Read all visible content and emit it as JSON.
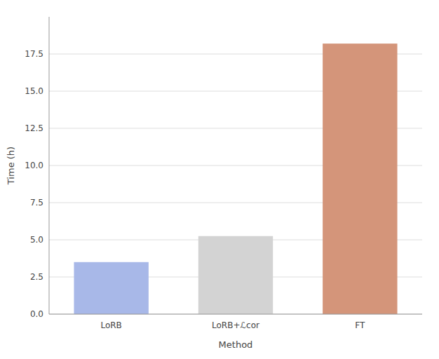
{
  "chart_data": {
    "type": "bar",
    "xlabel": "Method",
    "ylabel": "Time (h)",
    "categories": [
      "LoRB",
      "LoRB+ℒcor",
      "FT"
    ],
    "values": [
      3.5,
      5.25,
      18.2
    ],
    "colors": [
      "#a8b8e8",
      "#d3d3d3",
      "#d4957a"
    ],
    "ylim": [
      0,
      20.0
    ],
    "yticks": [
      {
        "value": 0.0,
        "label": "0.0"
      },
      {
        "value": 2.5,
        "label": "2.5"
      },
      {
        "value": 5.0,
        "label": "5.0"
      },
      {
        "value": 7.5,
        "label": "7.5"
      },
      {
        "value": 10.0,
        "label": "10.0"
      },
      {
        "value": 12.5,
        "label": "12.5"
      },
      {
        "value": 15.0,
        "label": "15.0"
      },
      {
        "value": 17.5,
        "label": "17.5"
      }
    ],
    "grid": true
  }
}
